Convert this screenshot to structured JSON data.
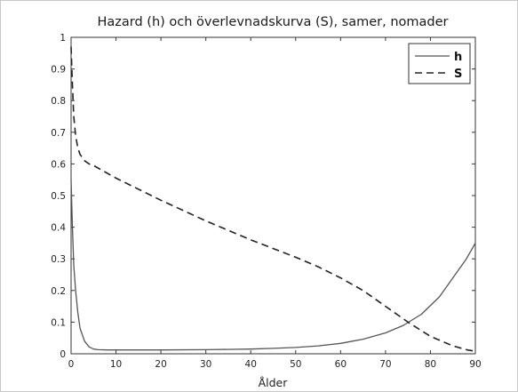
{
  "chart_data": {
    "type": "line",
    "title": "Hazard (h) och överlevnadskurva (S), samer, nomader",
    "xlabel": "Ålder",
    "ylabel": "",
    "xlim": [
      0,
      90
    ],
    "ylim": [
      0,
      1
    ],
    "xticks": [
      0,
      10,
      20,
      30,
      40,
      50,
      60,
      70,
      80,
      90
    ],
    "yticks": [
      0,
      0.1,
      0.2,
      0.3,
      0.4,
      0.5,
      0.6,
      0.7,
      0.8,
      0.9,
      1
    ],
    "ytick_labels": [
      "0",
      "0.1",
      "0.2",
      "0.3",
      "0.4",
      "0.5",
      "0.6",
      "0.7",
      "0.8",
      "0.9",
      "1"
    ],
    "grid": false,
    "legend_position": "top-right",
    "series": [
      {
        "name": "h",
        "style": "solid",
        "color": "#555555",
        "x": [
          0,
          0.3,
          0.6,
          1,
          1.5,
          2,
          3,
          4,
          5,
          6,
          8,
          10,
          20,
          30,
          40,
          45,
          50,
          55,
          60,
          65,
          70,
          74,
          78,
          82,
          85,
          88,
          90
        ],
        "y": [
          0.55,
          0.4,
          0.28,
          0.2,
          0.13,
          0.08,
          0.04,
          0.022,
          0.015,
          0.013,
          0.012,
          0.012,
          0.012,
          0.013,
          0.015,
          0.017,
          0.02,
          0.025,
          0.033,
          0.046,
          0.066,
          0.09,
          0.125,
          0.18,
          0.24,
          0.3,
          0.35
        ]
      },
      {
        "name": "S",
        "style": "dashed",
        "color": "#222222",
        "x": [
          0,
          0.3,
          0.6,
          1,
          1.5,
          2,
          3,
          4,
          5,
          10,
          20,
          30,
          40,
          50,
          55,
          60,
          65,
          70,
          75,
          80,
          85,
          88,
          90
        ],
        "y": [
          0.97,
          0.85,
          0.75,
          0.69,
          0.65,
          0.63,
          0.61,
          0.6,
          0.595,
          0.555,
          0.485,
          0.42,
          0.36,
          0.305,
          0.275,
          0.24,
          0.2,
          0.15,
          0.1,
          0.055,
          0.025,
          0.013,
          0.008
        ]
      }
    ]
  }
}
